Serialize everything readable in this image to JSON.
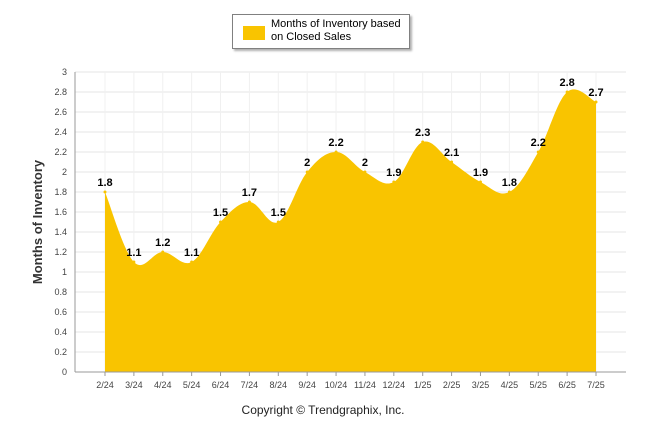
{
  "legend": {
    "label": "Months of Inventory based on Closed Sales"
  },
  "colors": {
    "fill": "#F9C400",
    "grid": "#e6e6e6"
  },
  "footer": {
    "copyright": "Copyright © Trendgraphix, Inc."
  },
  "chart_data": {
    "type": "area",
    "title": "",
    "xlabel": "",
    "ylabel": "Months of Inventory",
    "ylim": [
      0,
      3
    ],
    "yticks": [
      "0",
      "0.2",
      "0.4",
      "0.6",
      "0.8",
      "1",
      "1.2",
      "1.4",
      "1.6",
      "1.8",
      "2",
      "2.2",
      "2.4",
      "2.6",
      "2.8",
      "3"
    ],
    "categories": [
      "2/24",
      "3/24",
      "4/24",
      "5/24",
      "6/24",
      "7/24",
      "8/24",
      "9/24",
      "10/24",
      "11/24",
      "12/24",
      "1/25",
      "2/25",
      "3/25",
      "4/25",
      "5/25",
      "6/25",
      "7/25"
    ],
    "series": [
      {
        "name": "Months of Inventory based on Closed Sales",
        "values": [
          1.8,
          1.1,
          1.2,
          1.1,
          1.5,
          1.7,
          1.5,
          2,
          2.2,
          2,
          1.9,
          2.3,
          2.1,
          1.9,
          1.8,
          2.2,
          2.8,
          2.7
        ],
        "labels": [
          "1.8",
          "1.1",
          "1.2",
          "1.1",
          "1.5",
          "1.7",
          "1.5",
          "2",
          "2.2",
          "2",
          "1.9",
          "2.3",
          "2.1",
          "1.9",
          "1.8",
          "2.2",
          "2.8",
          "2.7"
        ]
      }
    ],
    "grid": true,
    "legend_position": "top-center"
  }
}
